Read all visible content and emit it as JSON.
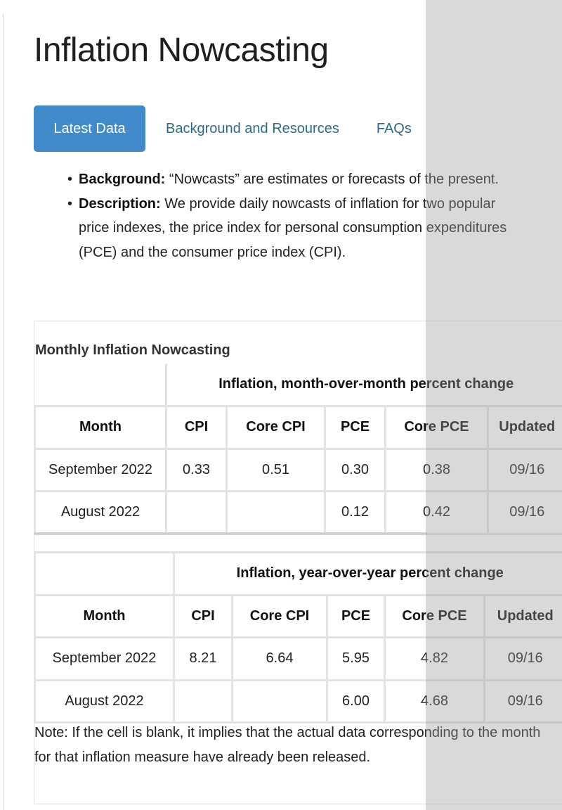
{
  "page_title": "Inflation Nowcasting",
  "tabs": [
    {
      "label": "Latest Data",
      "active": true
    },
    {
      "label": "Background and Resources",
      "active": false
    },
    {
      "label": "FAQs",
      "active": false
    }
  ],
  "description": [
    {
      "term": "Background:",
      "text": "“Nowcasts” are estimates or forecasts of the present."
    },
    {
      "term": "Description:",
      "text": "We provide daily nowcasts of inflation for two popular price indexes, the price index for personal consumption expenditures (PCE) and the consumer price index (CPI)."
    }
  ],
  "section_title": "Monthly Inflation Nowcasting",
  "mom_table": {
    "caption": "Inflation, month-over-month percent change",
    "headers": [
      "Month",
      "CPI",
      "Core CPI",
      "PCE",
      "Core PCE",
      "Updated"
    ],
    "rows": [
      [
        "September 2022",
        "0.33",
        "0.51",
        "0.30",
        "0.38",
        "09/16"
      ],
      [
        "August 2022",
        "",
        "",
        "0.12",
        "0.42",
        "09/16"
      ]
    ]
  },
  "yoy_table": {
    "caption": "Inflation, year-over-year percent change",
    "headers": [
      "Month",
      "CPI",
      "Core CPI",
      "PCE",
      "Core PCE",
      "Updated"
    ],
    "rows": [
      [
        "September 2022",
        "8.21",
        "6.64",
        "5.95",
        "4.82",
        "09/16"
      ],
      [
        "August 2022",
        "",
        "",
        "6.00",
        "4.68",
        "09/16"
      ]
    ]
  },
  "note": "Note: If the cell is blank, it implies that the actual data corresponding to the month for that inflation measure have already been released.",
  "colors": {
    "tab_active_bg": "#428bca",
    "tab_link": "#2e6b84",
    "overlay": "#9e9b9e"
  }
}
